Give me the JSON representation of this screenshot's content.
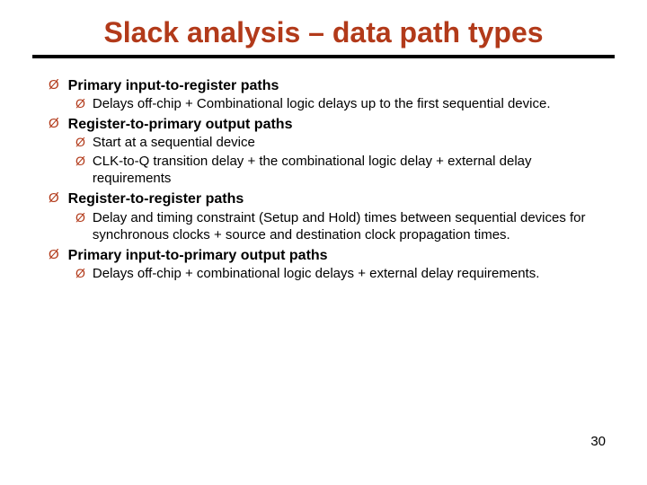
{
  "title": "Slack analysis – data path types",
  "title_color": "#b23a1a",
  "title_fontsize": 32,
  "rule_color": "#000000",
  "bullet_glyph": "Ø",
  "bullet_color": "#b23a1a",
  "text_color": "#000000",
  "body_fontsize_lvl1": 16,
  "body_fontsize_lvl2": 15,
  "items": [
    {
      "label": "Primary input-to-register paths",
      "sub": [
        "Delays off-chip + Combinational logic delays up to the first sequential device."
      ]
    },
    {
      "label": "Register-to-primary output paths",
      "sub": [
        "Start at a sequential device",
        "CLK-to-Q transition delay + the combinational logic delay + external delay requirements"
      ]
    },
    {
      "label": "Register-to-register paths",
      "sub": [
        "Delay and timing constraint (Setup and Hold) times between sequential devices for synchronous clocks + source and destination clock propagation times."
      ]
    },
    {
      "label": "Primary input-to-primary output paths",
      "sub": [
        "Delays off-chip + combinational logic delays + external delay requirements."
      ]
    }
  ],
  "page_number": "30",
  "page_number_fontsize": 15,
  "page_number_color": "#000000"
}
